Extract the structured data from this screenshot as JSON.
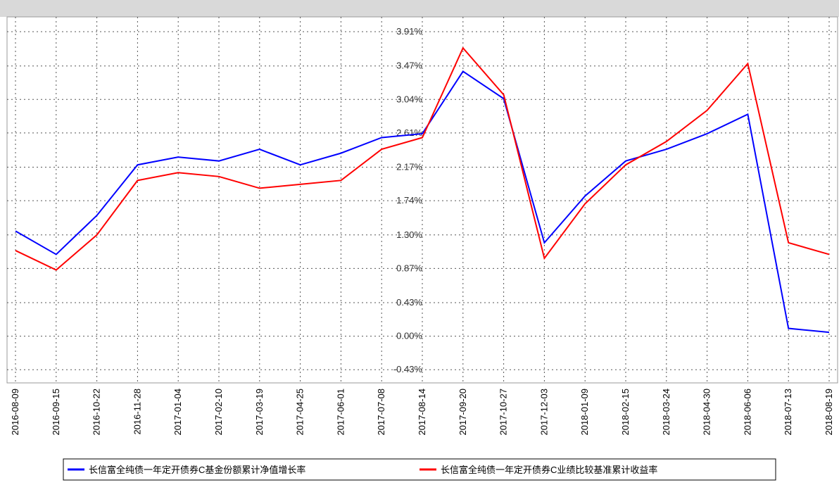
{
  "chart_data": {
    "type": "line",
    "categories": [
      "2016-08-09",
      "2016-09-15",
      "2016-10-22",
      "2016-11-28",
      "2017-01-04",
      "2017-02-10",
      "2017-03-19",
      "2017-04-25",
      "2017-06-01",
      "2017-07-08",
      "2017-08-14",
      "2017-09-20",
      "2017-10-27",
      "2017-12-03",
      "2018-01-09",
      "2018-02-15",
      "2018-03-24",
      "2018-04-30",
      "2018-06-06",
      "2018-07-13",
      "2018-08-19"
    ],
    "series": [
      {
        "name": "长信富全纯债一年定开债券C基金份额累计净值增长率",
        "color": "#0000ff",
        "values": [
          1.35,
          1.05,
          1.55,
          2.2,
          2.3,
          2.25,
          2.4,
          2.2,
          2.35,
          2.55,
          2.6,
          3.4,
          3.05,
          1.2,
          1.8,
          2.25,
          2.4,
          2.6,
          2.85,
          0.1,
          0.05
        ]
      },
      {
        "name": "长信富全纯债一年定开债券C业绩比较基准累计收益率",
        "color": "#ff0000",
        "values": [
          1.1,
          0.85,
          1.3,
          2.0,
          2.1,
          2.05,
          1.9,
          1.95,
          2.0,
          2.4,
          2.55,
          3.7,
          3.1,
          1.0,
          1.7,
          2.2,
          2.5,
          2.9,
          3.5,
          1.2,
          1.05
        ]
      }
    ],
    "ylim": [
      -0.6,
      4.1
    ],
    "yticks": [
      {
        "value": -0.43,
        "label": "-0.43%"
      },
      {
        "value": 0,
        "label": "0.00%"
      },
      {
        "value": 0.43,
        "label": "0.43%"
      },
      {
        "value": 0.87,
        "label": "0.87%"
      },
      {
        "value": 1.3,
        "label": "1.30%"
      },
      {
        "value": 1.74,
        "label": "1.74%"
      },
      {
        "value": 2.17,
        "label": "2.17%"
      },
      {
        "value": 2.61,
        "label": "2.61%"
      },
      {
        "value": 3.04,
        "label": "3.04%"
      },
      {
        "value": 3.47,
        "label": "3.47%"
      },
      {
        "value": 3.91,
        "label": "3.91%"
      }
    ],
    "grid": true
  }
}
